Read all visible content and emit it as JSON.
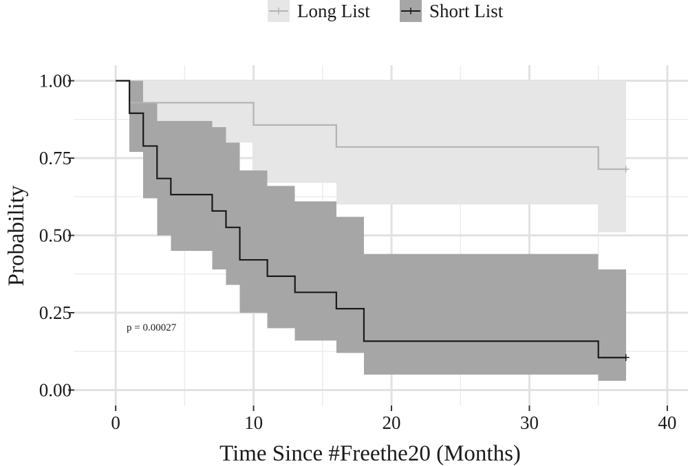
{
  "chart_data": {
    "type": "line",
    "subtype": "kaplan-meier survival curve with confidence bands",
    "xlabel": "Time Since #Freethe20 (Months)",
    "ylabel": "Probability",
    "xlim": [
      -3,
      41.5
    ],
    "ylim": [
      -0.05,
      1.05
    ],
    "x_ticks": [
      0,
      10,
      20,
      30,
      40
    ],
    "x_tick_labels": [
      "0",
      "10",
      "20",
      "30",
      "40"
    ],
    "y_ticks": [
      0,
      0.25,
      0.5,
      0.75,
      1.0
    ],
    "y_tick_labels": [
      "0.00",
      "0.25",
      "0.50",
      "0.75",
      "1.00"
    ],
    "grid": true,
    "legend_position": "top",
    "annotation": "p = 0.00027",
    "series": [
      {
        "name": "Long List",
        "color": "#b3b3b3",
        "band_color": "#e6e6e6",
        "steps": [
          [
            0,
            1.0
          ],
          [
            1,
            0.929
          ],
          [
            10,
            0.857
          ],
          [
            16,
            0.786
          ],
          [
            35,
            0.714
          ],
          [
            37,
            0.714
          ]
        ],
        "band": [
          [
            0,
            1.0,
            1.0
          ],
          [
            1,
            0.8,
            1.0
          ],
          [
            10,
            0.67,
            1.0
          ],
          [
            16,
            0.6,
            1.0
          ],
          [
            35,
            0.51,
            1.0
          ],
          [
            37,
            0.51,
            1.0
          ]
        ],
        "censor_x": [
          37
        ]
      },
      {
        "name": "Short List",
        "color": "#1a1a1a",
        "band_color": "#a6a6a6",
        "steps": [
          [
            0,
            1.0
          ],
          [
            1,
            0.895
          ],
          [
            2,
            0.789
          ],
          [
            3,
            0.684
          ],
          [
            4,
            0.632
          ],
          [
            7,
            0.579
          ],
          [
            8,
            0.526
          ],
          [
            9,
            0.421
          ],
          [
            11,
            0.368
          ],
          [
            13,
            0.316
          ],
          [
            16,
            0.263
          ],
          [
            18,
            0.158
          ],
          [
            35,
            0.105
          ],
          [
            37,
            0.105
          ]
        ],
        "band": [
          [
            0,
            1.0,
            1.0
          ],
          [
            1,
            0.77,
            1.0
          ],
          [
            2,
            0.62,
            0.93
          ],
          [
            3,
            0.5,
            0.87
          ],
          [
            4,
            0.45,
            0.87
          ],
          [
            7,
            0.39,
            0.85
          ],
          [
            8,
            0.34,
            0.8
          ],
          [
            9,
            0.25,
            0.71
          ],
          [
            11,
            0.2,
            0.66
          ],
          [
            13,
            0.16,
            0.61
          ],
          [
            16,
            0.12,
            0.56
          ],
          [
            18,
            0.05,
            0.44
          ],
          [
            35,
            0.03,
            0.39
          ],
          [
            37,
            0.03,
            0.39
          ]
        ],
        "censor_x": [
          37
        ]
      }
    ]
  }
}
